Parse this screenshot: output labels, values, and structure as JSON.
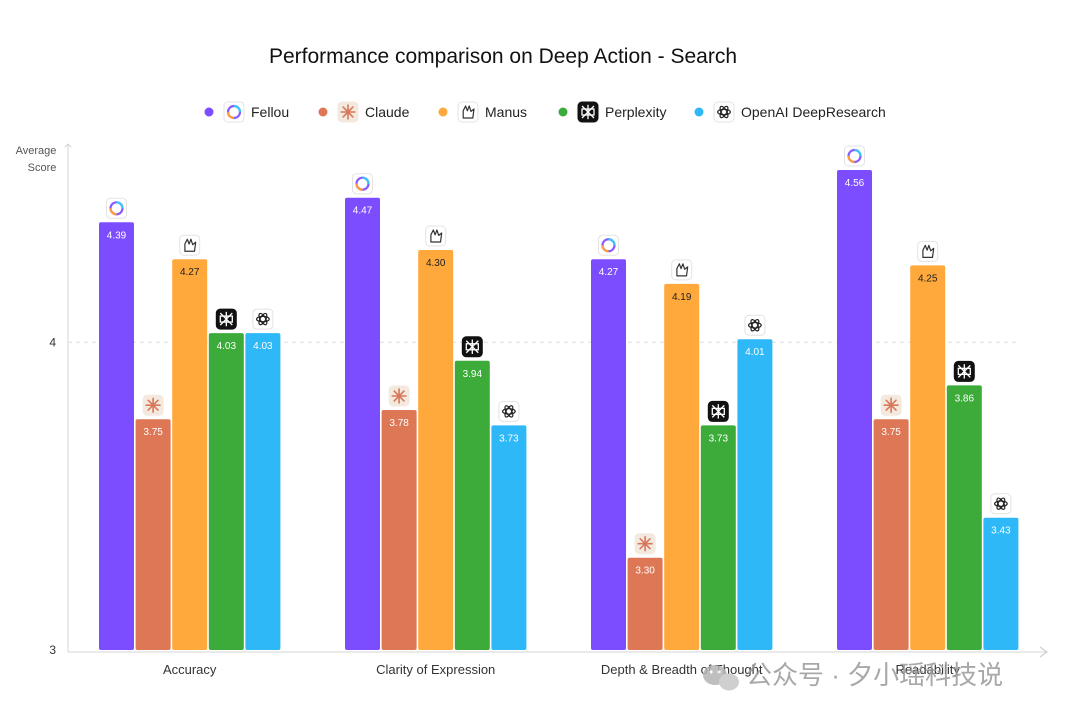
{
  "chart_data": {
    "type": "bar",
    "title": "Performance comparison on Deep Action - Search",
    "ylabel_lines": [
      "Average",
      "Score"
    ],
    "xlabel": "",
    "ylim": [
      3,
      4.95
    ],
    "yticks": [
      3,
      4
    ],
    "grid": "dashed line at 4",
    "legend_position": "top-center",
    "categories": [
      "Accuracy",
      "Clarity of Expression",
      "Depth & Breadth of Thought",
      "Readability"
    ],
    "series": [
      {
        "name": "Fellou",
        "color": "#7c4dff",
        "icon": "fellou-ring-icon",
        "values": [
          4.39,
          4.47,
          4.27,
          4.56
        ]
      },
      {
        "name": "Claude",
        "color": "#de7756",
        "icon": "claude-asterisk-icon",
        "values": [
          3.75,
          3.78,
          3.3,
          3.75
        ]
      },
      {
        "name": "Manus",
        "color": "#ffa83c",
        "icon": "manus-glove-icon",
        "values": [
          4.27,
          4.3,
          4.19,
          4.25
        ]
      },
      {
        "name": "Perplexity",
        "color": "#3cab3a",
        "icon": "perplexity-logo-icon",
        "values": [
          4.03,
          3.94,
          3.73,
          3.86
        ]
      },
      {
        "name": "OpenAI DeepResearch",
        "color": "#2eb8f8",
        "icon": "openai-knot-icon",
        "values": [
          4.03,
          3.73,
          4.01,
          3.43
        ]
      }
    ]
  },
  "watermark": "公众号 · 夕小瑶科技说"
}
